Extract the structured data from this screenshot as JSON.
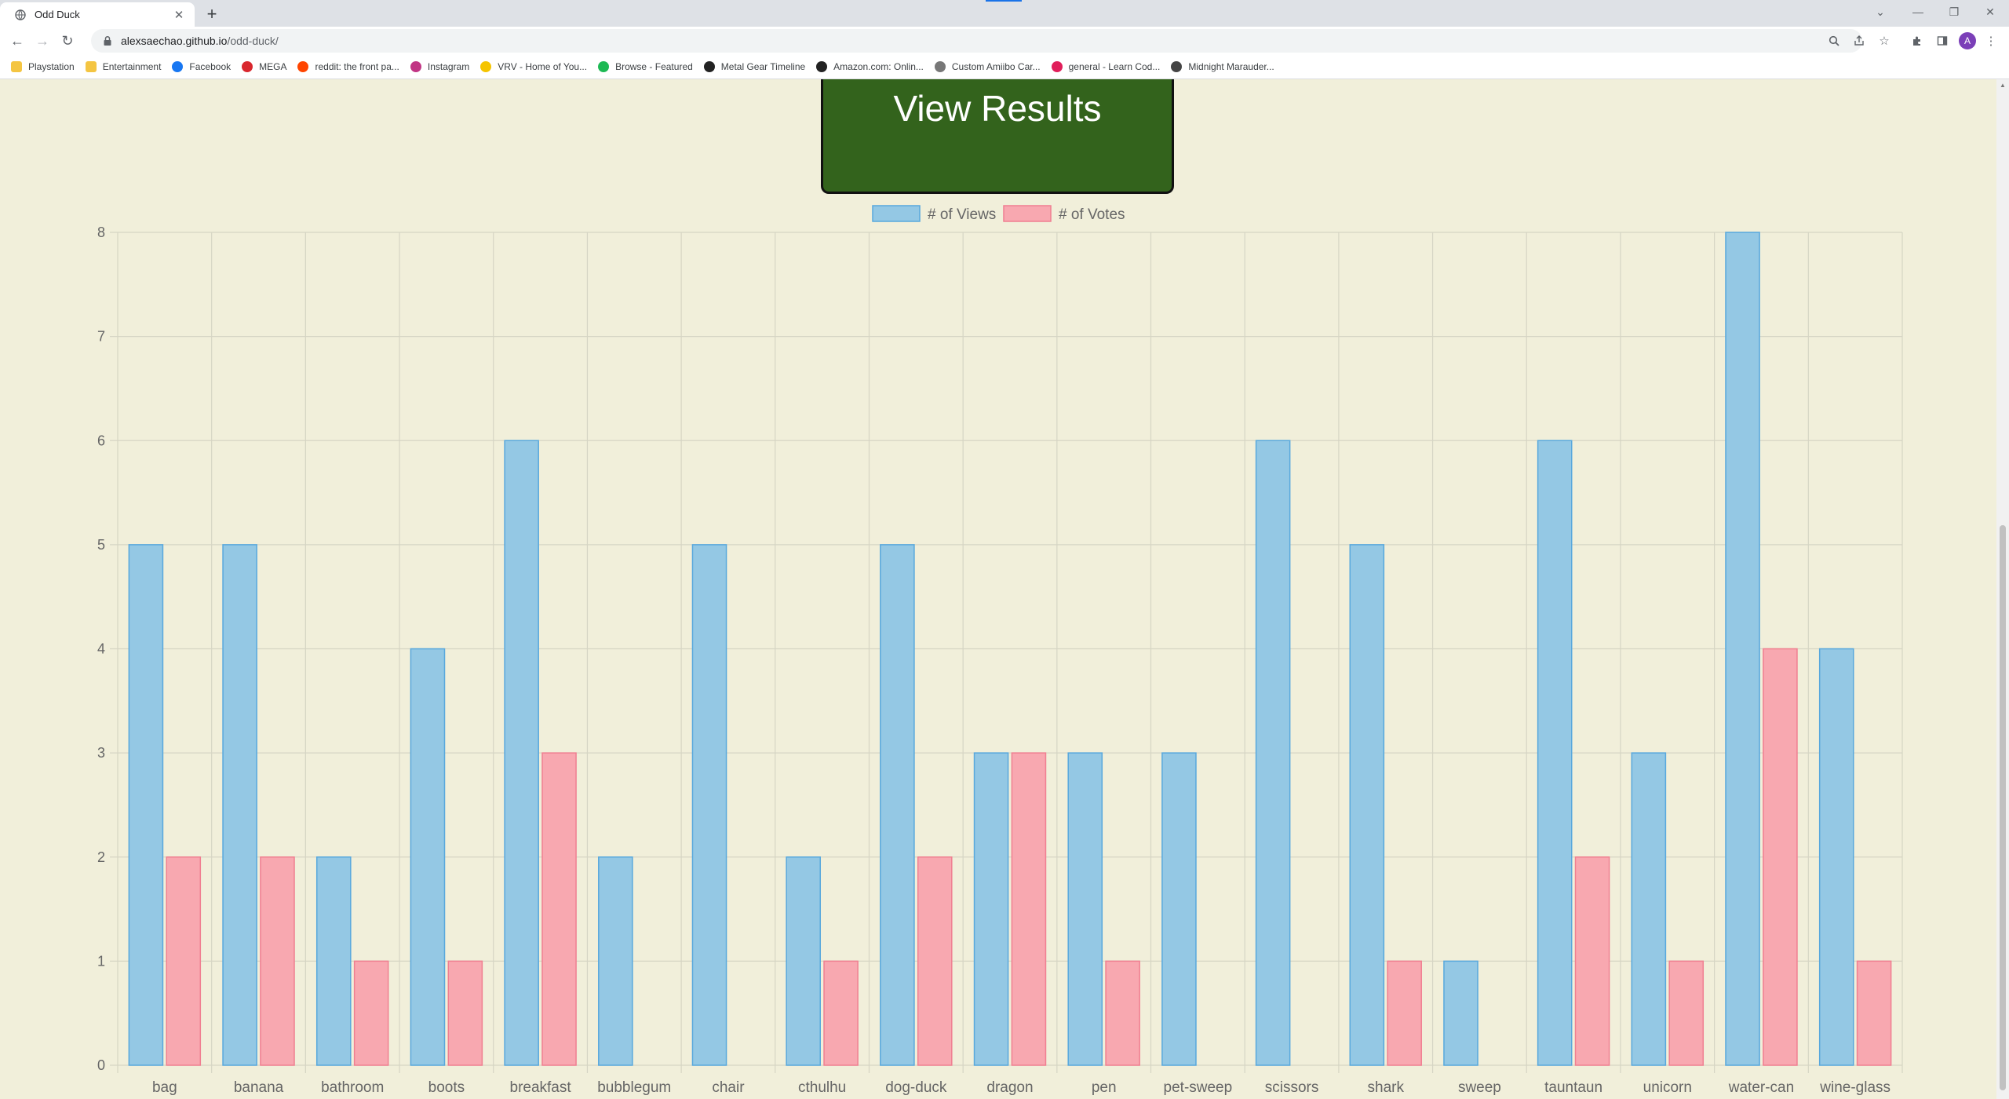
{
  "browser": {
    "tab_title": "Odd Duck",
    "url_host": "alexsaechao.github.io",
    "url_path": "/odd-duck/",
    "profile_initial": "A",
    "bookmarks": [
      {
        "label": "Playstation",
        "icon_color": "#f4c542"
      },
      {
        "label": "Entertainment",
        "icon_color": "#f4c542"
      },
      {
        "label": "Facebook",
        "icon_color": "#1877f2"
      },
      {
        "label": "MEGA",
        "icon_color": "#d9272e"
      },
      {
        "label": "reddit: the front pa...",
        "icon_color": "#ff4500"
      },
      {
        "label": "Instagram",
        "icon_color": "#c13584"
      },
      {
        "label": "VRV - Home of You...",
        "icon_color": "#f5c400"
      },
      {
        "label": "Browse - Featured",
        "icon_color": "#1db954"
      },
      {
        "label": "Metal Gear Timeline",
        "icon_color": "#222222"
      },
      {
        "label": "Amazon.com: Onlin...",
        "icon_color": "#222222"
      },
      {
        "label": "Custom Amiibo Car...",
        "icon_color": "#777777"
      },
      {
        "label": "general - Learn Cod...",
        "icon_color": "#e01e5a"
      },
      {
        "label": "Midnight Marauder...",
        "icon_color": "#444444"
      }
    ]
  },
  "page": {
    "view_results_label": "View Results"
  },
  "colors": {
    "views_fill": "#94c8e4",
    "views_stroke": "#58a8dd",
    "votes_fill": "#f8a8b0",
    "votes_stroke": "#f07f91",
    "button_bg": "#33631c",
    "page_bg": "#f1efda"
  },
  "chart_data": {
    "type": "bar",
    "categories": [
      "bag",
      "banana",
      "bathroom",
      "boots",
      "breakfast",
      "bubblegum",
      "chair",
      "cthulhu",
      "dog-duck",
      "dragon",
      "pen",
      "pet-sweep",
      "scissors",
      "shark",
      "sweep",
      "tauntaun",
      "unicorn",
      "water-can",
      "wine-glass"
    ],
    "series": [
      {
        "name": "# of Views",
        "values": [
          5,
          5,
          2,
          4,
          6,
          2,
          5,
          2,
          5,
          3,
          3,
          3,
          6,
          5,
          1,
          6,
          3,
          8,
          4
        ]
      },
      {
        "name": "# of Votes",
        "values": [
          2,
          2,
          1,
          1,
          3,
          0,
          0,
          1,
          2,
          3,
          1,
          0,
          0,
          1,
          0,
          2,
          1,
          4,
          1
        ]
      }
    ],
    "yticks": [
      0,
      1,
      2,
      3,
      4,
      5,
      6,
      7,
      8
    ],
    "ylim": [
      0,
      8
    ],
    "legend_position": "top",
    "grid": true,
    "title": "",
    "xlabel": "",
    "ylabel": ""
  }
}
